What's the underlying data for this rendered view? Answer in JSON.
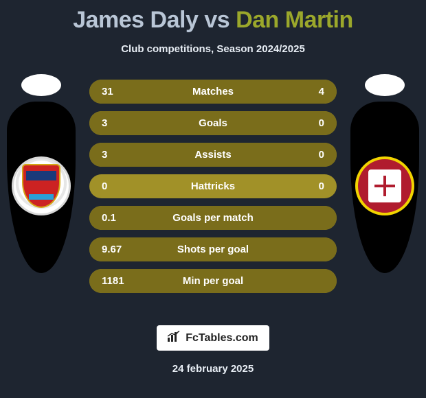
{
  "title": {
    "player1": "James Daly",
    "vs": "vs",
    "player2": "Dan Martin"
  },
  "subtitle": "Club competitions, Season 2024/2025",
  "colors": {
    "bar_base": "#a19128",
    "bar_fill": "#7a6d1b",
    "text": "#ffffff"
  },
  "rows": [
    {
      "metric": "Matches",
      "left": "31",
      "right": "4",
      "left_pct": 88,
      "right_pct": 12
    },
    {
      "metric": "Goals",
      "left": "3",
      "right": "0",
      "left_pct": 100,
      "right_pct": 0
    },
    {
      "metric": "Assists",
      "left": "3",
      "right": "0",
      "left_pct": 100,
      "right_pct": 0
    },
    {
      "metric": "Hattricks",
      "left": "0",
      "right": "0",
      "left_pct": 0,
      "right_pct": 0
    },
    {
      "metric": "Goals per match",
      "left": "0.1",
      "right": "",
      "left_pct": 100,
      "right_pct": 0
    },
    {
      "metric": "Shots per goal",
      "left": "9.67",
      "right": "",
      "left_pct": 100,
      "right_pct": 0
    },
    {
      "metric": "Min per goal",
      "left": "1181",
      "right": "",
      "left_pct": 100,
      "right_pct": 0
    }
  ],
  "footer": {
    "brand": "FcTables.com",
    "date": "24 february 2025"
  }
}
